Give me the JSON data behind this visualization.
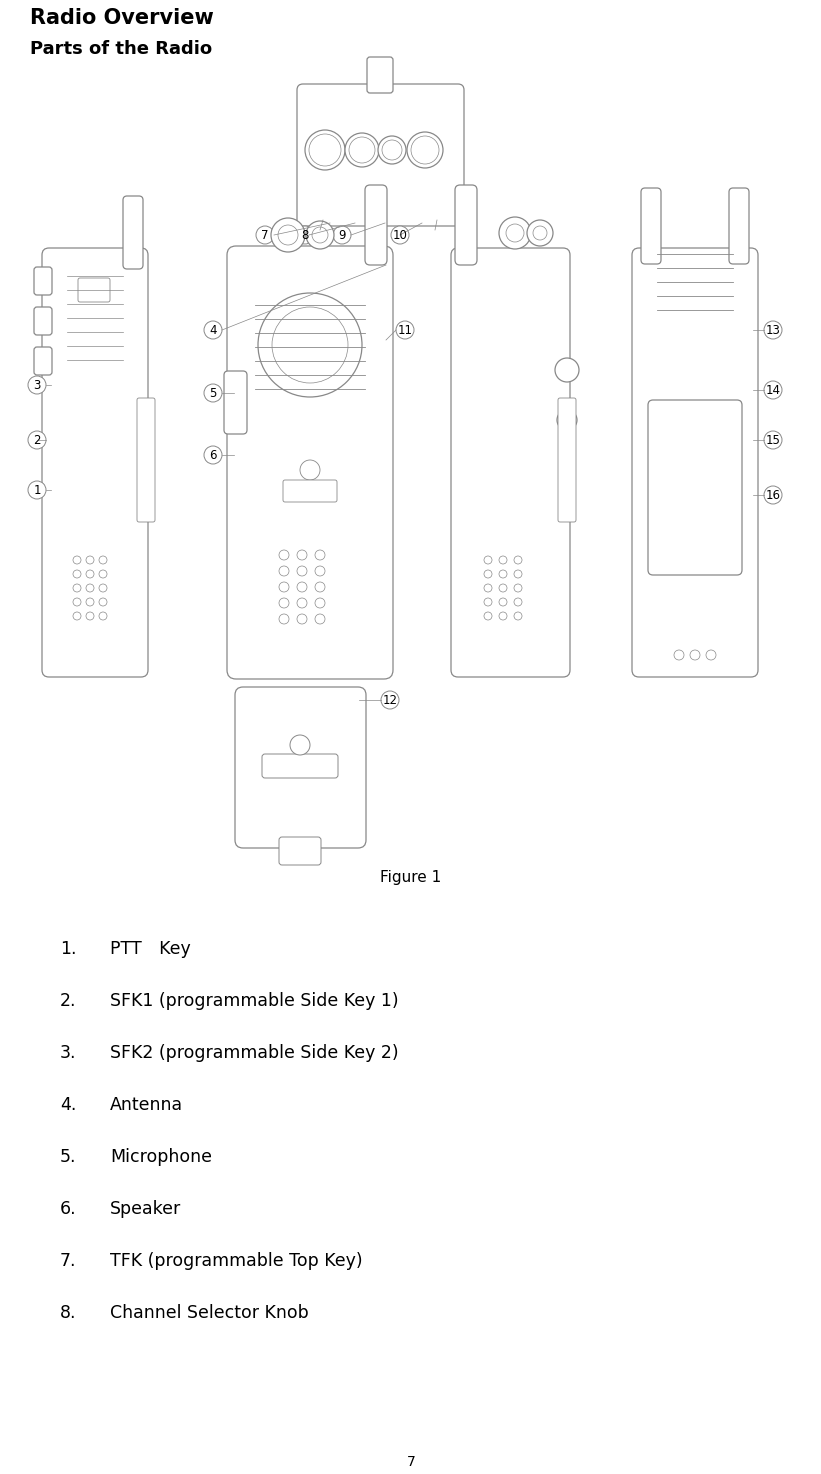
{
  "title": "Radio Overview",
  "subtitle": "Parts of the Radio",
  "figure_label": "Figure 1",
  "page_number": "7",
  "bg_color": "#ffffff",
  "title_fontsize": 15,
  "subtitle_fontsize": 13,
  "list_fontsize": 12.5,
  "figure_label_fontsize": 11,
  "page_fontsize": 10,
  "items": [
    {
      "num": "1.",
      "text": "PTT Key"
    },
    {
      "num": "2.",
      "text": "SFK1 (programmable Side Key 1)"
    },
    {
      "num": "3.",
      "text": "SFK2 (programmable Side Key 2)"
    },
    {
      "num": "4.",
      "text": "Antenna"
    },
    {
      "num": "5.",
      "text": "Microphone"
    },
    {
      "num": "6.",
      "text": "Speaker"
    },
    {
      "num": "7.",
      "text": "TFK (programmable Top Key)"
    },
    {
      "num": "8.",
      "text": "Channel Selector Knob"
    }
  ]
}
